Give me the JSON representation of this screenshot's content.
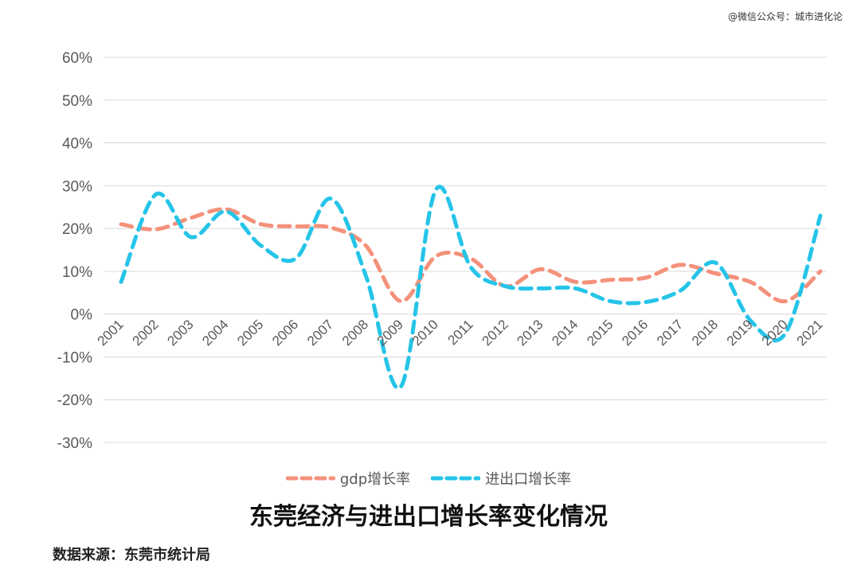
{
  "watermark": "@微信公众号：城市进化论",
  "source": "数据来源：东莞市统计局",
  "colors": {
    "gdp": "#f4917b",
    "trade": "#25c4e8",
    "grid": "#d9d9d9",
    "text": "#595959"
  },
  "chart_data": {
    "type": "line",
    "title": "东莞经济与进出口增长率变化情况",
    "x": [
      "2001",
      "2002",
      "2003",
      "2004",
      "2005",
      "2006",
      "2007",
      "2008",
      "2009",
      "2010",
      "2011",
      "2012",
      "2013",
      "2014",
      "2015",
      "2016",
      "2017",
      "2018",
      "2019",
      "2020",
      "2021"
    ],
    "ylim": [
      -30,
      60
    ],
    "yticks": [
      -30,
      -20,
      -10,
      0,
      10,
      20,
      30,
      40,
      50,
      60
    ],
    "ytick_labels": [
      "-30%",
      "-20%",
      "-10%",
      "0%",
      "10%",
      "20%",
      "30%",
      "40%",
      "50%",
      "60%"
    ],
    "grid": true,
    "legend": "bottom",
    "series": [
      {
        "name": "gdp增长率",
        "color": "#f4917b",
        "values": [
          21,
          19.8,
          22.5,
          24.5,
          21,
          20.5,
          20.2,
          16,
          3,
          13.5,
          13,
          6.5,
          10.5,
          7.5,
          8,
          8.5,
          11.5,
          9.5,
          7.5,
          3,
          10
        ]
      },
      {
        "name": "进出口增长率",
        "color": "#25c4e8",
        "values": [
          7.5,
          28,
          18,
          24,
          16,
          13,
          27,
          9,
          -17,
          29,
          11,
          6.5,
          6,
          6,
          3,
          2.8,
          5.5,
          12,
          -1.5,
          -4.5,
          23
        ]
      }
    ]
  }
}
